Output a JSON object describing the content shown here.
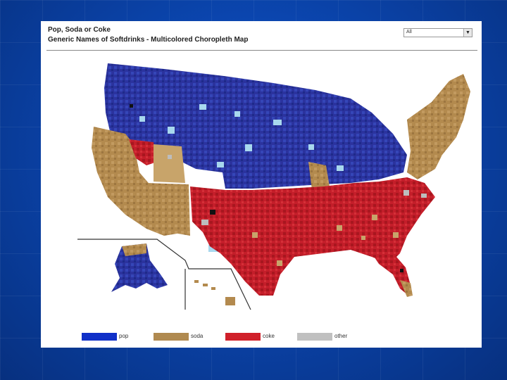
{
  "header": {
    "title": "Pop, Soda or Coke",
    "subtitle": "Generic Names of Softdrinks - Multicolored Choropleth Map"
  },
  "filter": {
    "selected": "All"
  },
  "legend": [
    {
      "label": "pop",
      "color": "#1030c8"
    },
    {
      "label": "soda",
      "color": "#b08a50"
    },
    {
      "label": "coke",
      "color": "#d0202a"
    },
    {
      "label": "other",
      "color": "#c0c0c0"
    }
  ],
  "regions": {
    "pop": [
      "northwest",
      "midwest",
      "great-lakes",
      "plains",
      "alaska"
    ],
    "soda": [
      "california",
      "southwest",
      "northeast",
      "florida-south",
      "hawaii",
      "st-louis"
    ],
    "coke": [
      "south",
      "texas",
      "nevada-west"
    ],
    "other": [
      "scattered counties"
    ]
  },
  "colors": {
    "pop": "#2a34a0",
    "pop_light": "#3c55c0",
    "pop_pale": "#a8d8ee",
    "soda": "#b38a4e",
    "soda_light": "#c8a46a",
    "coke": "#c01c28",
    "coke_dark": "#9e1620",
    "other": "#bdbdbd"
  }
}
